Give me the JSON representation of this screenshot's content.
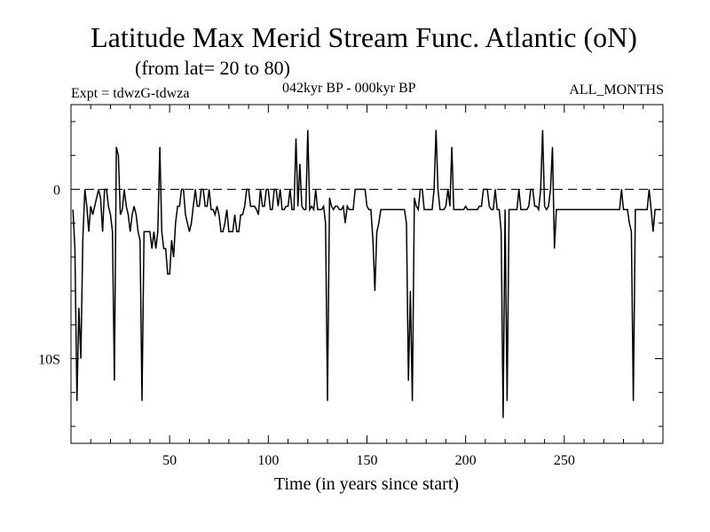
{
  "header": {
    "title": "Latitude Max Merid Stream Func. Atlantic (oN)",
    "subtitle": "(from lat= 20 to 80)",
    "expt": "Expt = tdwzG-tdwza",
    "period": "042kyr BP - 000kyr BP",
    "months": "ALL_MONTHS"
  },
  "chart_data": {
    "type": "line",
    "title": "Latitude Max Merid Stream Func. Atlantic (oN)",
    "xlabel": "Time (in years since start)",
    "ylabel": "",
    "xlim": [
      0,
      300
    ],
    "ylim": [
      -15,
      5
    ],
    "x_ticks": [
      50,
      100,
      150,
      200,
      250
    ],
    "x_tick_labels": [
      "50",
      "100",
      "150",
      "200",
      "250"
    ],
    "y_ticks": [
      0,
      -10
    ],
    "y_tick_labels": [
      "0",
      "10S"
    ],
    "reference_line": 0,
    "grid": false,
    "series": [
      {
        "values": [
          [
            1,
            -1.2
          ],
          [
            2,
            -3.5
          ],
          [
            3,
            -12.5
          ],
          [
            4,
            -7
          ],
          [
            5,
            -10
          ],
          [
            6,
            -3
          ],
          [
            7,
            0
          ],
          [
            8,
            -1
          ],
          [
            9,
            -2.5
          ],
          [
            10,
            -1
          ],
          [
            11,
            -1.5
          ],
          [
            12,
            -1
          ],
          [
            13,
            -0.5
          ],
          [
            14,
            0
          ],
          [
            15,
            -0.5
          ],
          [
            16,
            -2.5
          ],
          [
            17,
            0
          ],
          [
            18,
            0
          ],
          [
            19,
            -1
          ],
          [
            20,
            -1.5
          ],
          [
            21,
            -2.5
          ],
          [
            22,
            -11.3
          ],
          [
            23,
            2.5
          ],
          [
            24,
            2
          ],
          [
            25,
            -1.5
          ],
          [
            26,
            -1.2
          ],
          [
            27,
            0
          ],
          [
            28,
            -1
          ],
          [
            29,
            -1.5
          ],
          [
            30,
            -2.5
          ],
          [
            31,
            -1.5
          ],
          [
            32,
            -1
          ],
          [
            33,
            -1.5
          ],
          [
            34,
            -2.5
          ],
          [
            35,
            -3
          ],
          [
            36,
            -12.5
          ],
          [
            37,
            -2.5
          ],
          [
            38,
            -2.5
          ],
          [
            39,
            -2.5
          ],
          [
            40,
            -2.5
          ],
          [
            41,
            -3.5
          ],
          [
            42,
            -2.5
          ],
          [
            43,
            -3.5
          ],
          [
            44,
            -2.5
          ],
          [
            45,
            2.5
          ],
          [
            46,
            -2.5
          ],
          [
            47,
            -3.5
          ],
          [
            48,
            -3.5
          ],
          [
            49,
            -5
          ],
          [
            50,
            -5
          ],
          [
            51,
            -3
          ],
          [
            52,
            -4
          ],
          [
            53,
            -2
          ],
          [
            54,
            -1
          ],
          [
            55,
            -1
          ],
          [
            56,
            0
          ],
          [
            57,
            0
          ],
          [
            58,
            -1.5
          ],
          [
            59,
            -2
          ],
          [
            60,
            -2.5
          ],
          [
            61,
            -2
          ],
          [
            62,
            -1
          ],
          [
            63,
            0
          ],
          [
            64,
            -1
          ],
          [
            65,
            -1
          ],
          [
            66,
            0
          ],
          [
            67,
            0
          ],
          [
            68,
            -1
          ],
          [
            69,
            -1
          ],
          [
            70,
            0
          ],
          [
            71,
            -1.2
          ],
          [
            72,
            -1.2
          ],
          [
            73,
            -1.5
          ],
          [
            74,
            -1
          ],
          [
            75,
            -1.5
          ],
          [
            76,
            -2.5
          ],
          [
            77,
            -2.5
          ],
          [
            78,
            -2
          ],
          [
            79,
            -1.2
          ],
          [
            80,
            -2.5
          ],
          [
            81,
            -2.5
          ],
          [
            82,
            -2.5
          ],
          [
            83,
            -1.5
          ],
          [
            84,
            -2.5
          ],
          [
            85,
            -2.5
          ],
          [
            86,
            -1.5
          ],
          [
            87,
            -1.5
          ],
          [
            88,
            -1
          ],
          [
            89,
            0
          ],
          [
            90,
            0
          ],
          [
            91,
            -1
          ],
          [
            92,
            -1
          ],
          [
            93,
            -1
          ],
          [
            94,
            -1.2
          ],
          [
            95,
            -1.5
          ],
          [
            96,
            0
          ],
          [
            97,
            -1
          ],
          [
            98,
            -1
          ],
          [
            99,
            0
          ],
          [
            100,
            0
          ],
          [
            101,
            -1.2
          ],
          [
            102,
            -1.2
          ],
          [
            103,
            0
          ],
          [
            104,
            0
          ],
          [
            105,
            -1
          ],
          [
            106,
            0
          ],
          [
            107,
            -1.2
          ],
          [
            108,
            -1.2
          ],
          [
            109,
            -1
          ],
          [
            110,
            -1
          ],
          [
            111,
            0
          ],
          [
            112,
            -1.2
          ],
          [
            113,
            -1.2
          ],
          [
            114,
            3
          ],
          [
            115,
            -1
          ],
          [
            116,
            1.5
          ],
          [
            117,
            -1
          ],
          [
            118,
            -1.2
          ],
          [
            119,
            -1.2
          ],
          [
            120,
            3.5
          ],
          [
            121,
            -1.2
          ],
          [
            122,
            -1
          ],
          [
            123,
            -1.2
          ],
          [
            124,
            0
          ],
          [
            125,
            -1.2
          ],
          [
            126,
            -1.2
          ],
          [
            127,
            -1.2
          ],
          [
            128,
            -1
          ],
          [
            129,
            -2
          ],
          [
            130,
            -12.5
          ],
          [
            131,
            -0.5
          ],
          [
            132,
            -1
          ],
          [
            133,
            -1.2
          ],
          [
            134,
            -1
          ],
          [
            135,
            -1
          ],
          [
            136,
            -1.2
          ],
          [
            137,
            -1.2
          ],
          [
            138,
            -1
          ],
          [
            139,
            -2
          ],
          [
            140,
            -1
          ],
          [
            141,
            -1.2
          ],
          [
            142,
            -1.2
          ],
          [
            143,
            -1.2
          ],
          [
            144,
            0
          ],
          [
            145,
            0
          ],
          [
            146,
            0
          ],
          [
            147,
            0
          ],
          [
            148,
            0
          ],
          [
            149,
            0
          ],
          [
            150,
            -1
          ],
          [
            151,
            -1.2
          ],
          [
            152,
            -1.2
          ],
          [
            153,
            -3
          ],
          [
            154,
            -6
          ],
          [
            155,
            -2.5
          ],
          [
            156,
            -2
          ],
          [
            157,
            -1.2
          ],
          [
            158,
            -1.2
          ],
          [
            159,
            -1.2
          ],
          [
            160,
            -1.2
          ],
          [
            161,
            -1.2
          ],
          [
            162,
            -1.2
          ],
          [
            163,
            -1.2
          ],
          [
            164,
            -1.2
          ],
          [
            165,
            -1.2
          ],
          [
            166,
            -1.2
          ],
          [
            167,
            -1.2
          ],
          [
            168,
            -1.2
          ],
          [
            169,
            -1.2
          ],
          [
            170,
            -2
          ],
          [
            171,
            -11.3
          ],
          [
            172,
            -6
          ],
          [
            173,
            -12.5
          ],
          [
            174,
            -0.5
          ],
          [
            175,
            -1
          ],
          [
            176,
            -1.2
          ],
          [
            177,
            0
          ],
          [
            178,
            0
          ],
          [
            179,
            -1.2
          ],
          [
            180,
            -1.2
          ],
          [
            181,
            -1.2
          ],
          [
            182,
            -1.2
          ],
          [
            183,
            -1.2
          ],
          [
            184,
            0
          ],
          [
            185,
            3.5
          ],
          [
            186,
            0
          ],
          [
            187,
            -1.2
          ],
          [
            188,
            -1.2
          ],
          [
            189,
            -1.2
          ],
          [
            190,
            -1
          ],
          [
            191,
            0
          ],
          [
            192,
            -1
          ],
          [
            193,
            2.5
          ],
          [
            194,
            -1.2
          ],
          [
            195,
            -1.2
          ],
          [
            196,
            -1.2
          ],
          [
            197,
            -1.2
          ],
          [
            198,
            -1.2
          ],
          [
            199,
            -1.2
          ],
          [
            200,
            -1
          ],
          [
            201,
            -1.2
          ],
          [
            202,
            -1.2
          ],
          [
            203,
            -1.2
          ],
          [
            204,
            -1.2
          ],
          [
            205,
            -1.2
          ],
          [
            206,
            -1.2
          ],
          [
            207,
            -1
          ],
          [
            208,
            -1
          ],
          [
            209,
            0
          ],
          [
            210,
            0
          ],
          [
            211,
            0
          ],
          [
            212,
            -1
          ],
          [
            213,
            -1.2
          ],
          [
            214,
            -1.2
          ],
          [
            215,
            0
          ],
          [
            216,
            -1.2
          ],
          [
            217,
            -1.2
          ],
          [
            218,
            -2.5
          ],
          [
            219,
            -13.5
          ],
          [
            220,
            -1.2
          ],
          [
            221,
            -12.5
          ],
          [
            222,
            -1.2
          ],
          [
            223,
            -1.2
          ],
          [
            224,
            -1.2
          ],
          [
            225,
            -1.2
          ],
          [
            226,
            -1.2
          ],
          [
            227,
            0
          ],
          [
            228,
            -1.2
          ],
          [
            229,
            -1.2
          ],
          [
            230,
            -1.2
          ],
          [
            231,
            -1.2
          ],
          [
            232,
            -1
          ],
          [
            233,
            0
          ],
          [
            234,
            0
          ],
          [
            235,
            -1
          ],
          [
            236,
            -1
          ],
          [
            237,
            -1.2
          ],
          [
            238,
            0
          ],
          [
            239,
            3.5
          ],
          [
            240,
            -1
          ],
          [
            241,
            -1.2
          ],
          [
            242,
            -1
          ],
          [
            243,
            0
          ],
          [
            244,
            2.5
          ],
          [
            245,
            -3.5
          ],
          [
            246,
            -1.2
          ],
          [
            247,
            -1.2
          ],
          [
            248,
            -1.2
          ],
          [
            249,
            -1.2
          ],
          [
            250,
            -1.2
          ],
          [
            251,
            -1.2
          ],
          [
            252,
            -1.2
          ],
          [
            253,
            -1.2
          ],
          [
            254,
            -1.2
          ],
          [
            255,
            -1.2
          ],
          [
            256,
            -1.2
          ],
          [
            257,
            -1.2
          ],
          [
            258,
            -1.2
          ],
          [
            259,
            -1.2
          ],
          [
            260,
            -1.2
          ],
          [
            261,
            -1.2
          ],
          [
            262,
            -1.2
          ],
          [
            263,
            -1.2
          ],
          [
            264,
            -1.2
          ],
          [
            265,
            -1.2
          ],
          [
            266,
            -1.2
          ],
          [
            267,
            -1.2
          ],
          [
            268,
            -1.2
          ],
          [
            269,
            -1.2
          ],
          [
            270,
            -1.2
          ],
          [
            271,
            -1.2
          ],
          [
            272,
            -1.2
          ],
          [
            273,
            -1.2
          ],
          [
            274,
            -1.2
          ],
          [
            275,
            -1.2
          ],
          [
            276,
            -1.2
          ],
          [
            277,
            -1.2
          ],
          [
            278,
            -1.2
          ],
          [
            279,
            0
          ],
          [
            280,
            -1.2
          ],
          [
            281,
            -1.2
          ],
          [
            282,
            -1.2
          ],
          [
            283,
            -2
          ],
          [
            284,
            -2.5
          ],
          [
            285,
            -12.5
          ],
          [
            286,
            -1.2
          ],
          [
            287,
            -1.2
          ],
          [
            288,
            -1.2
          ],
          [
            289,
            -1.2
          ],
          [
            290,
            -1.2
          ],
          [
            291,
            -1.2
          ],
          [
            292,
            -1.2
          ],
          [
            293,
            0
          ],
          [
            294,
            -1.2
          ],
          [
            295,
            -2.5
          ],
          [
            296,
            -1.2
          ],
          [
            297,
            -1.2
          ],
          [
            298,
            -1.2
          ],
          [
            299,
            -1.2
          ]
        ]
      }
    ]
  }
}
